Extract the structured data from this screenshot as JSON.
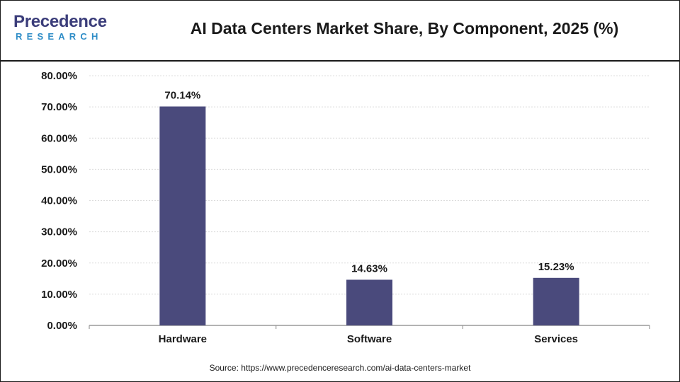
{
  "header": {
    "logo_primary": "Precedence",
    "logo_secondary": "RESEARCH",
    "title": "AI Data Centers Market Share, By Component, 2025 (%)"
  },
  "footer": {
    "source": "Source: https://www.precedenceresearch.com/ai-data-centers-market"
  },
  "colors": {
    "bar": "#4a4a7c",
    "logo_primary": "#3b3d7a",
    "logo_secondary": "#2f8dc7"
  },
  "chart_data": {
    "type": "bar",
    "title": "AI Data Centers Market Share, By Component, 2025 (%)",
    "categories": [
      "Hardware",
      "Software",
      "Services"
    ],
    "values": [
      70.14,
      14.63,
      15.23
    ],
    "value_labels": [
      "70.14%",
      "14.63%",
      "15.23%"
    ],
    "ylim": [
      0,
      80
    ],
    "yticks": [
      0,
      10,
      20,
      30,
      40,
      50,
      60,
      70,
      80
    ],
    "ytick_labels": [
      "0.00%",
      "10.00%",
      "20.00%",
      "30.00%",
      "40.00%",
      "50.00%",
      "60.00%",
      "70.00%",
      "80.00%"
    ],
    "grid": true,
    "legend": "none"
  }
}
